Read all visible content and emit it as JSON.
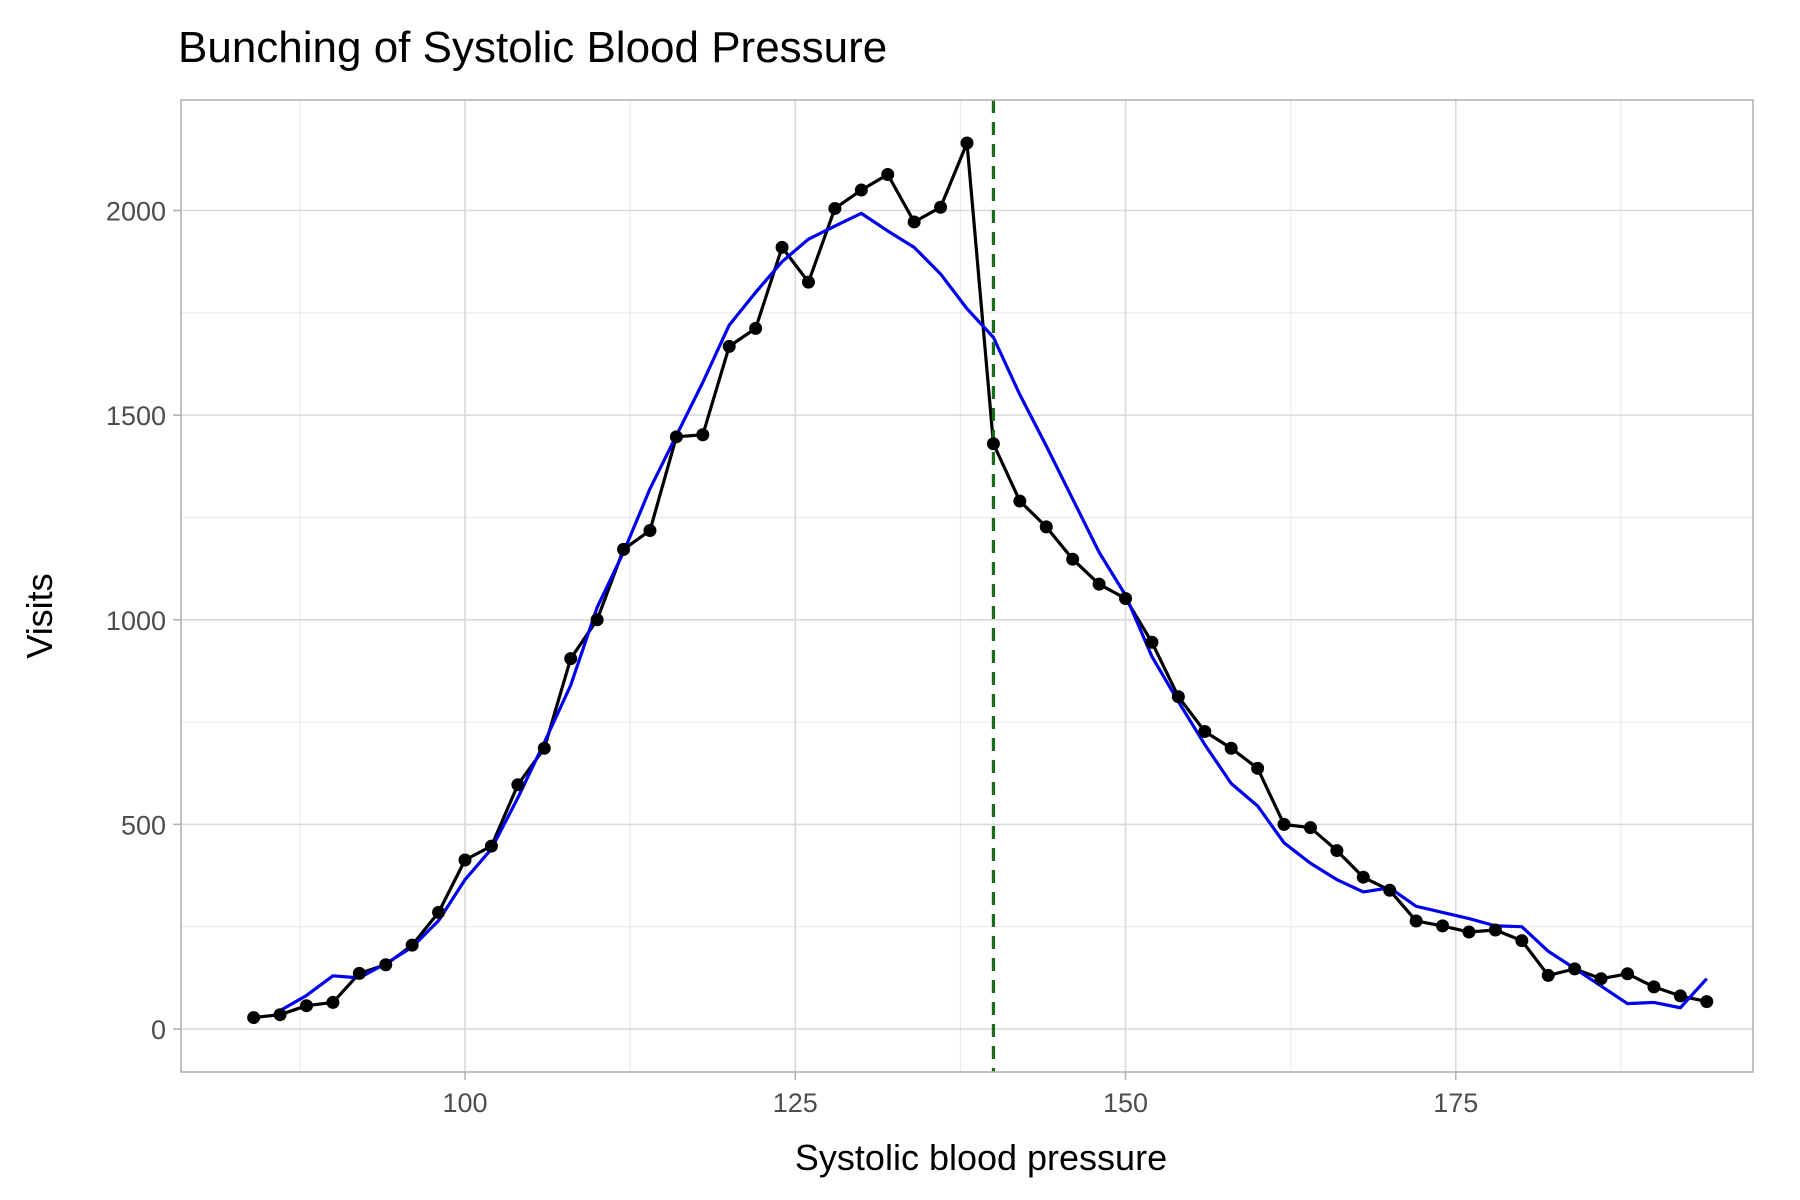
{
  "chart_data": {
    "type": "line",
    "title": "Bunching of Systolic Blood Pressure",
    "xlabel": "Systolic blood pressure",
    "ylabel": "Visits",
    "xlim": [
      78.5,
      197.5
    ],
    "ylim": [
      -105,
      2270
    ],
    "x_ticks": [
      100,
      125,
      150,
      175
    ],
    "x_tick_labels": [
      "100",
      "125",
      "150",
      "175"
    ],
    "x_minor_ticks": [
      87.5,
      112.5,
      137.5,
      162.5,
      187.5
    ],
    "y_ticks": [
      0,
      500,
      1000,
      1500,
      2000
    ],
    "y_tick_labels": [
      "0",
      "500",
      "1000",
      "1500",
      "2000"
    ],
    "y_minor_ticks": [
      250,
      750,
      1250,
      1750
    ],
    "grid": true,
    "threshold": {
      "x": 140,
      "color": "#1a6b1a",
      "style": "dashed"
    },
    "series": [
      {
        "color": "#000000",
        "markers": true,
        "x": [
          84,
          86,
          88,
          90,
          92,
          94,
          96,
          98,
          100,
          102,
          104,
          106,
          108,
          110,
          112,
          114,
          116,
          118,
          120,
          122,
          124,
          126,
          128,
          130,
          132,
          134,
          136,
          138,
          140,
          142,
          144,
          146,
          148,
          150,
          152,
          154,
          156,
          158,
          160,
          162,
          164,
          166,
          168,
          170,
          172,
          174,
          176,
          178,
          180,
          182,
          184,
          186,
          188,
          190,
          192,
          194
        ],
        "y": [
          28,
          35,
          57,
          65,
          136,
          157,
          205,
          285,
          413,
          447,
          597,
          686,
          905,
          1000,
          1172,
          1218,
          1447,
          1452,
          1668,
          1712,
          1910,
          1825,
          2005,
          2050,
          2088,
          1972,
          2008,
          2165,
          1430,
          1290,
          1227,
          1148,
          1087,
          1052,
          945,
          812,
          727,
          686,
          637,
          500,
          492,
          436,
          371,
          339,
          264,
          252,
          237,
          242,
          216,
          131,
          147,
          123,
          135,
          103,
          81,
          67
        ]
      },
      {
        "color": "#0000ee",
        "markers": false,
        "x": [
          86,
          88,
          90,
          92,
          94,
          96,
          98,
          100,
          102,
          104,
          106,
          108,
          110,
          112,
          114,
          116,
          118,
          120,
          122,
          124,
          126,
          128,
          130,
          132,
          134,
          136,
          138,
          140,
          142,
          144,
          146,
          148,
          150,
          152,
          154,
          156,
          158,
          160,
          162,
          164,
          166,
          168,
          170,
          172,
          174,
          176,
          178,
          180,
          182,
          184,
          186,
          188,
          190,
          192,
          194
        ],
        "y": [
          45,
          82,
          130,
          125,
          160,
          200,
          265,
          365,
          440,
          565,
          700,
          840,
          1030,
          1165,
          1320,
          1450,
          1580,
          1720,
          1800,
          1875,
          1930,
          1962,
          1993,
          1950,
          1910,
          1845,
          1760,
          1690,
          1550,
          1425,
          1295,
          1165,
          1060,
          910,
          800,
          695,
          600,
          545,
          455,
          405,
          365,
          335,
          345,
          300,
          285,
          270,
          252,
          250,
          190,
          148,
          105,
          62,
          65,
          52,
          123
        ]
      }
    ]
  }
}
